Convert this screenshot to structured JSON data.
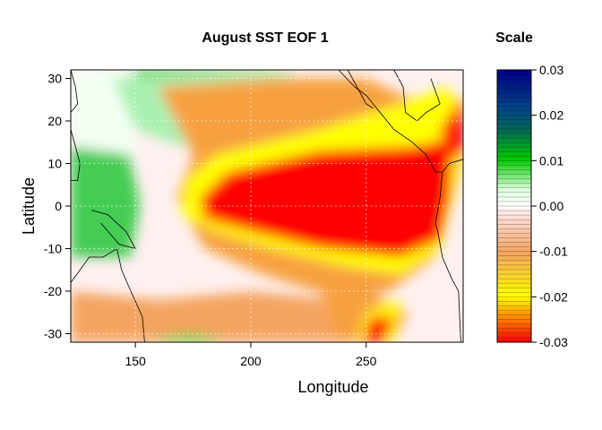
{
  "chart_data": {
    "type": "heatmap",
    "title": "August SST EOF 1",
    "xlabel": "Longitude",
    "ylabel": "Latitude",
    "xlim": [
      122,
      292
    ],
    "ylim": [
      -32,
      32
    ],
    "x_ticks": [
      150,
      200,
      250
    ],
    "y_ticks": [
      -30,
      -20,
      -10,
      0,
      10,
      20,
      30
    ],
    "grid": true,
    "colorbar": {
      "title": "Scale",
      "range": [
        -0.03,
        0.03
      ],
      "ticks": [
        "0.03",
        "0.02",
        "0.01",
        "0.00",
        "-0.01",
        "-0.02",
        "-0.03"
      ],
      "colors": {
        "-0.03": "#ff0000",
        "-0.02": "#ffff00",
        "-0.01": "#f4a460",
        "0.00": "#ffffff",
        "0.01": "#00cc00",
        "0.02": "#006666",
        "0.03": "#000088"
      }
    },
    "features": [
      {
        "name": "equatorial red tongue",
        "value": -0.03,
        "lon_range": [
          175,
          285
        ],
        "lat_range": [
          -10,
          13
        ]
      },
      {
        "name": "subtropical green band north",
        "value": 0.012,
        "lon_range": [
          150,
          210
        ],
        "lat_range": [
          10,
          32
        ]
      },
      {
        "name": "western pacific green",
        "value": 0.01,
        "lon_range": [
          122,
          150
        ],
        "lat_range": [
          -10,
          10
        ]
      },
      {
        "name": "southern orange band",
        "value": -0.01,
        "lon_range": [
          122,
          230
        ],
        "lat_range": [
          -32,
          -15
        ]
      },
      {
        "name": "peru coast red",
        "value": -0.03,
        "lon_range": [
          245,
          260
        ],
        "lat_range": [
          -32,
          -25
        ]
      }
    ]
  }
}
